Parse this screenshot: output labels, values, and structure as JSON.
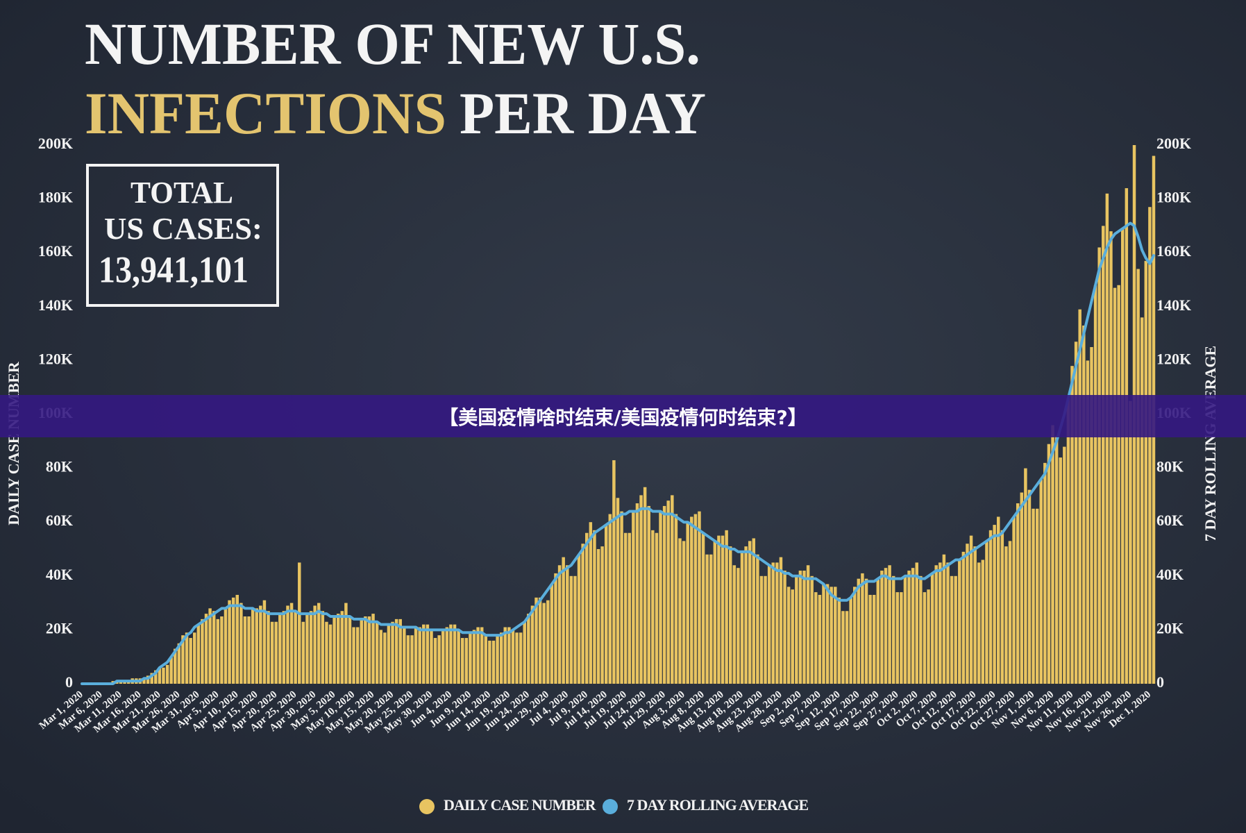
{
  "chart_data": {
    "type": "bar",
    "title": [
      "NUMBER OF NEW U.S.",
      "INFECTIONS",
      "PER DAY"
    ],
    "total_box": {
      "label": [
        "TOTAL",
        "US CASES:"
      ],
      "value": "13,941,101"
    },
    "banner": "【美国疫情啥时结束/美国疫情何时结束?】",
    "ylabel": "DAILY CASE NUMBER",
    "y2label": "7 DAY ROLLING AVERAGE",
    "ylim": [
      0,
      200000
    ],
    "y2lim": [
      0,
      200000
    ],
    "yticks": [
      0,
      {
        "value": 20000,
        "label": "20K"
      },
      {
        "value": 40000,
        "label": "40K"
      },
      {
        "value": 60000,
        "label": "60K"
      },
      {
        "value": 80000,
        "label": "80K"
      },
      {
        "value": 100000,
        "label": "100K"
      },
      {
        "value": 120000,
        "label": "120K"
      },
      {
        "value": 140000,
        "label": "140K"
      },
      {
        "value": 160000,
        "label": "160K"
      },
      {
        "value": 180000,
        "label": "180K"
      },
      {
        "value": 200000,
        "label": "200K"
      }
    ],
    "y2ticks": [
      0,
      {
        "value": 20000,
        "label": "20K"
      },
      {
        "value": 40000,
        "label": "40K"
      },
      {
        "value": 60000,
        "label": "60K"
      },
      {
        "value": 80000,
        "label": "80K"
      },
      {
        "value": 100000,
        "label": "100K"
      },
      {
        "value": 120000,
        "label": "120K"
      },
      {
        "value": 140000,
        "label": "140K"
      },
      {
        "value": 160000,
        "label": "160K"
      },
      {
        "value": 180000,
        "label": "180K"
      },
      {
        "value": 200000,
        "label": "200K"
      }
    ],
    "grid": false,
    "legend": "bottom",
    "categories": [
      "Mar 1, 2020",
      null,
      null,
      null,
      null,
      "Mar 6, 2020",
      null,
      null,
      null,
      null,
      "Mar 11, 2020",
      null,
      null,
      null,
      null,
      "Mar 16, 2020",
      null,
      null,
      null,
      null,
      "Mar 21, 2020",
      null,
      null,
      null,
      null,
      "Mar 26, 2020",
      null,
      null,
      null,
      null,
      "Mar 31, 2020",
      null,
      null,
      null,
      null,
      "Apr 5, 2020",
      null,
      null,
      null,
      null,
      "Apr 10, 2020",
      null,
      null,
      null,
      null,
      "Apr 15, 2020",
      null,
      null,
      null,
      null,
      "Apr 20, 2020",
      null,
      null,
      null,
      null,
      "Apr 25, 2020",
      null,
      null,
      null,
      null,
      "Apr 30, 2020",
      null,
      null,
      null,
      null,
      "May 5, 2020",
      null,
      null,
      null,
      null,
      "May 10, 2020",
      null,
      null,
      null,
      null,
      "May 15, 2020",
      null,
      null,
      null,
      null,
      "May 20, 2020",
      null,
      null,
      null,
      null,
      "May 25, 2020",
      null,
      null,
      null,
      null,
      "May 30, 2020",
      null,
      null,
      null,
      null,
      "Jun 4, 2020",
      null,
      null,
      null,
      null,
      "Jun 9, 2020",
      null,
      null,
      null,
      null,
      "Jun 14, 2020",
      null,
      null,
      null,
      null,
      "Jun 19, 2020",
      null,
      null,
      null,
      null,
      "Jun 24, 2020",
      null,
      null,
      null,
      null,
      "Jun 29, 2020",
      null,
      null,
      null,
      null,
      "Jul 4, 2020",
      null,
      null,
      null,
      null,
      "Jul 9, 2020",
      null,
      null,
      null,
      null,
      "Jul 14, 2020",
      null,
      null,
      null,
      null,
      "Jul 19, 2020",
      null,
      null,
      null,
      null,
      "Jul 24, 2020",
      null,
      null,
      null,
      null,
      "Jul 29, 2020",
      null,
      null,
      null,
      null,
      "Aug 3, 2020",
      null,
      null,
      null,
      null,
      "Aug 8, 2020",
      null,
      null,
      null,
      null,
      "Aug 13, 2020",
      null,
      null,
      null,
      null,
      "Aug 18, 2020",
      null,
      null,
      null,
      null,
      "Aug 23, 2020",
      null,
      null,
      null,
      null,
      "Aug 28, 2020",
      null,
      null,
      null,
      null,
      "Sep 2, 2020",
      null,
      null,
      null,
      null,
      "Sep 7, 2020",
      null,
      null,
      null,
      null,
      "Sep 12, 2020",
      null,
      null,
      null,
      null,
      "Sep 17, 2020",
      null,
      null,
      null,
      null,
      "Sep 22, 2020",
      null,
      null,
      null,
      null,
      "Sep 27, 2020",
      null,
      null,
      null,
      null,
      "Oct 2, 2020",
      null,
      null,
      null,
      null,
      "Oct 7, 2020",
      null,
      null,
      null,
      null,
      "Oct 12, 2020",
      null,
      null,
      null,
      null,
      "Oct 17, 2020",
      null,
      null,
      null,
      null,
      "Oct 22, 2020",
      null,
      null,
      null,
      null,
      "Oct 27, 2020",
      null,
      null,
      null,
      null,
      "Nov 1, 2020",
      null,
      null,
      null,
      null,
      "Nov 6, 2020",
      null,
      null,
      null,
      null,
      "Nov 11, 2020",
      null,
      null,
      null,
      null,
      "Nov 16, 2020",
      null,
      null,
      null,
      null,
      "Nov 21, 2020",
      null,
      null,
      null,
      null,
      "Nov 26, 2020",
      null,
      null,
      null,
      null,
      "Dec 1, 2020",
      null
    ],
    "series": [
      {
        "name": "DAILY CASE NUMBER",
        "type": "bar",
        "color": "#e8c461",
        "values": [
          0,
          0,
          0,
          0,
          0,
          0,
          0,
          0,
          1000,
          1000,
          1000,
          1000,
          1000,
          2000,
          2000,
          2000,
          2000,
          3000,
          4000,
          5000,
          6000,
          6000,
          7000,
          10000,
          13000,
          15000,
          18000,
          19000,
          17000,
          19000,
          22000,
          24000,
          26000,
          28000,
          27000,
          24000,
          25000,
          28000,
          31000,
          32000,
          33000,
          30000,
          25000,
          25000,
          28000,
          28000,
          29000,
          31000,
          27000,
          23000,
          23000,
          26000,
          27000,
          29000,
          30000,
          27000,
          45000,
          23000,
          26000,
          27000,
          29000,
          30000,
          27000,
          23000,
          22000,
          25000,
          26000,
          27000,
          30000,
          25000,
          21000,
          21000,
          24000,
          25000,
          25000,
          26000,
          23000,
          20000,
          19000,
          22000,
          23000,
          24000,
          24000,
          21000,
          18000,
          18000,
          21000,
          21000,
          22000,
          22000,
          20000,
          17000,
          18000,
          20000,
          21000,
          22000,
          22000,
          20000,
          17000,
          17000,
          19000,
          20000,
          21000,
          21000,
          18000,
          16000,
          16000,
          18000,
          19000,
          21000,
          21000,
          20000,
          19000,
          19000,
          23000,
          26000,
          29000,
          32000,
          32000,
          30000,
          31000,
          37000,
          41000,
          44000,
          47000,
          44000,
          40000,
          40000,
          48000,
          52000,
          56000,
          60000,
          57000,
          50000,
          51000,
          59000,
          63000,
          83000,
          69000,
          64000,
          56000,
          56000,
          64000,
          67000,
          70000,
          73000,
          66000,
          57000,
          56000,
          64000,
          66000,
          68000,
          70000,
          63000,
          54000,
          53000,
          60000,
          62000,
          63000,
          64000,
          56000,
          48000,
          48000,
          53000,
          55000,
          55000,
          57000,
          51000,
          44000,
          43000,
          49000,
          51000,
          53000,
          54000,
          48000,
          40000,
          40000,
          44000,
          45000,
          45000,
          47000,
          42000,
          36000,
          35000,
          40000,
          42000,
          42000,
          44000,
          40000,
          34000,
          33000,
          37000,
          37000,
          36000,
          36000,
          32000,
          27000,
          27000,
          32000,
          36000,
          39000,
          41000,
          39000,
          33000,
          33000,
          39000,
          42000,
          43000,
          44000,
          40000,
          34000,
          34000,
          40000,
          42000,
          43000,
          45000,
          40000,
          34000,
          35000,
          41000,
          44000,
          45000,
          48000,
          45000,
          40000,
          40000,
          46000,
          49000,
          52000,
          55000,
          51000,
          45000,
          46000,
          53000,
          57000,
          59000,
          62000,
          57000,
          51000,
          53000,
          62000,
          67000,
          71000,
          80000,
          72000,
          65000,
          65000,
          76000,
          82000,
          89000,
          96000,
          92000,
          84000,
          88000,
          106000,
          118000,
          127000,
          139000,
          133000,
          120000,
          125000,
          148000,
          162000,
          170000,
          182000,
          168000,
          147000,
          148000,
          169000,
          184000,
          105000,
          200000,
          154000,
          136000,
          157000,
          177000,
          196000
        ]
      },
      {
        "name": "7 DAY ROLLING AVERAGE",
        "type": "line",
        "axis": "y2",
        "color": "#5aaedc",
        "values": [
          0,
          0,
          0,
          0,
          0,
          0,
          0,
          0,
          0,
          1000,
          1000,
          1000,
          1000,
          1000,
          1000,
          1000,
          2000,
          2000,
          3000,
          4000,
          6000,
          7000,
          8000,
          10000,
          12000,
          14000,
          16000,
          18000,
          19000,
          21000,
          22000,
          23000,
          24000,
          25000,
          26000,
          27000,
          28000,
          28000,
          29000,
          29000,
          29000,
          29000,
          28000,
          28000,
          28000,
          27000,
          27000,
          27000,
          26000,
          26000,
          26000,
          26000,
          26000,
          27000,
          27000,
          27000,
          26000,
          26000,
          26000,
          26000,
          26000,
          27000,
          26000,
          26000,
          25000,
          25000,
          25000,
          25000,
          25000,
          25000,
          24000,
          24000,
          24000,
          24000,
          23000,
          23000,
          23000,
          22000,
          22000,
          22000,
          22000,
          22000,
          21000,
          21000,
          21000,
          21000,
          21000,
          20000,
          20000,
          20000,
          20000,
          20000,
          20000,
          20000,
          20000,
          20000,
          20000,
          20000,
          19000,
          19000,
          19000,
          19000,
          19000,
          19000,
          18000,
          18000,
          18000,
          18000,
          18000,
          19000,
          19000,
          20000,
          21000,
          22000,
          23000,
          25000,
          27000,
          29000,
          31000,
          33000,
          35000,
          37000,
          39000,
          41000,
          42000,
          43000,
          44000,
          46000,
          48000,
          50000,
          52000,
          54000,
          56000,
          57000,
          58000,
          59000,
          60000,
          61000,
          62000,
          63000,
          63000,
          64000,
          64000,
          64000,
          65000,
          65000,
          65000,
          64000,
          64000,
          64000,
          63000,
          63000,
          63000,
          62000,
          61000,
          60000,
          60000,
          59000,
          58000,
          57000,
          56000,
          55000,
          54000,
          53000,
          52000,
          51000,
          51000,
          50000,
          50000,
          49000,
          49000,
          49000,
          49000,
          48000,
          47000,
          46000,
          45000,
          44000,
          43000,
          42000,
          42000,
          41000,
          41000,
          40000,
          40000,
          40000,
          39000,
          39000,
          39000,
          39000,
          38000,
          37000,
          35000,
          33000,
          32000,
          31000,
          31000,
          31000,
          32000,
          34000,
          36000,
          37000,
          38000,
          38000,
          38000,
          39000,
          40000,
          40000,
          39000,
          39000,
          39000,
          39000,
          40000,
          40000,
          40000,
          40000,
          39000,
          39000,
          40000,
          41000,
          42000,
          42000,
          43000,
          44000,
          45000,
          46000,
          46000,
          47000,
          48000,
          49000,
          50000,
          51000,
          52000,
          53000,
          54000,
          55000,
          55000,
          56000,
          58000,
          60000,
          62000,
          64000,
          66000,
          68000,
          70000,
          72000,
          74000,
          76000,
          78000,
          82000,
          86000,
          90000,
          95000,
          100000,
          106000,
          112000,
          118000,
          124000,
          130000,
          136000,
          142000,
          148000,
          154000,
          158000,
          162000,
          165000,
          167000,
          168000,
          169000,
          170000,
          171000,
          170000,
          166000,
          161000,
          158000,
          156000,
          159000
        ]
      }
    ]
  }
}
